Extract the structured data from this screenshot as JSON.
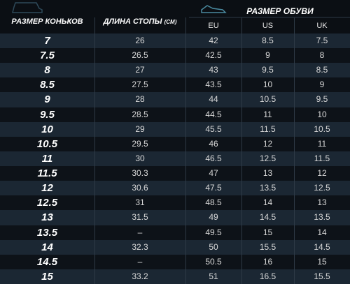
{
  "header": {
    "skate_size": "РАЗМЕР КОНЬКОВ",
    "foot_length": "ДЛИНА СТОПЫ",
    "foot_length_unit": "(СМ)",
    "shoe_size": "РАЗМЕР ОБУВИ",
    "shoe_columns": [
      "EU",
      "US",
      "UK"
    ]
  },
  "table": {
    "rows": [
      [
        "7",
        "26",
        "42",
        "8.5",
        "7.5"
      ],
      [
        "7.5",
        "26.5",
        "42.5",
        "9",
        "8"
      ],
      [
        "8",
        "27",
        "43",
        "9.5",
        "8.5"
      ],
      [
        "8.5",
        "27.5",
        "43.5",
        "10",
        "9"
      ],
      [
        "9",
        "28",
        "44",
        "10.5",
        "9.5"
      ],
      [
        "9.5",
        "28.5",
        "44.5",
        "11",
        "10"
      ],
      [
        "10",
        "29",
        "45.5",
        "11.5",
        "10.5"
      ],
      [
        "10.5",
        "29.5",
        "46",
        "12",
        "11"
      ],
      [
        "11",
        "30",
        "46.5",
        "12.5",
        "11.5"
      ],
      [
        "11.5",
        "30.3",
        "47",
        "13",
        "12"
      ],
      [
        "12",
        "30.6",
        "47.5",
        "13.5",
        "12.5"
      ],
      [
        "12.5",
        "31",
        "48.5",
        "14",
        "13"
      ],
      [
        "13",
        "31.5",
        "49",
        "14.5",
        "13.5"
      ],
      [
        "13.5",
        "–",
        "49.5",
        "15",
        "14"
      ],
      [
        "14",
        "32.3",
        "50",
        "15.5",
        "14.5"
      ],
      [
        "14.5",
        "–",
        "50.5",
        "16",
        "15"
      ],
      [
        "15",
        "33.2",
        "51",
        "16.5",
        "15.5"
      ]
    ]
  }
}
